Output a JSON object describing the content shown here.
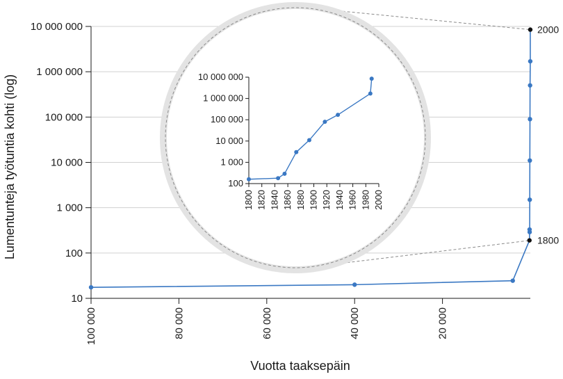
{
  "chart_data": [
    {
      "type": "line",
      "xlabel": "Vuotta taaksepäin",
      "ylabel": "Lumentunteja työtuntia kohti (log)",
      "yscale": "log",
      "ylim": [
        10,
        10000000
      ],
      "xlim": [
        100000,
        0
      ],
      "x_inverted": true,
      "y_ticks": [
        "10",
        "100",
        "1 000",
        "10 000",
        "100 000",
        "1 000 000",
        "10 000 000"
      ],
      "x_ticks": [
        "100 000",
        "80 000",
        "60 000",
        "40 000",
        "20 000"
      ],
      "grid": "horizontal",
      "series": [
        {
          "color": "#3a78c3",
          "points": [
            {
              "x": 100000,
              "y": 17.5
            },
            {
              "x": 40000,
              "y": 20
            },
            {
              "x": 4000,
              "y": 24.5
            },
            {
              "x": 200,
              "y": 190
            },
            {
              "x": 170,
              "y": 330
            },
            {
              "x": 150,
              "y": 290
            },
            {
              "x": 130,
              "y": 1500
            },
            {
              "x": 110,
              "y": 11000
            },
            {
              "x": 80,
              "y": 90000
            },
            {
              "x": 60,
              "y": 500000
            },
            {
              "x": 13,
              "y": 1700000
            },
            {
              "x": 11,
              "y": 8500000
            }
          ]
        }
      ],
      "annotations": [
        {
          "label": "2000",
          "y": 8500000
        },
        {
          "label": "1800",
          "y": 190
        }
      ]
    },
    {
      "type": "line",
      "role": "inset",
      "yscale": "log",
      "ylim": [
        100,
        10000000
      ],
      "xlim": [
        1800,
        2000
      ],
      "y_ticks": [
        "100",
        "1 000",
        "10 000",
        "100 000",
        "1 000 000",
        "10 000 000"
      ],
      "x_ticks": [
        "1800",
        "1820",
        "1840",
        "1860",
        "1880",
        "1900",
        "1920",
        "1940",
        "1960",
        "1980",
        "2000"
      ],
      "series": [
        {
          "color": "#3a78c3",
          "points": [
            {
              "x": 1800,
              "y": 160
            },
            {
              "x": 1845,
              "y": 180
            },
            {
              "x": 1855,
              "y": 290
            },
            {
              "x": 1873,
              "y": 3000
            },
            {
              "x": 1893,
              "y": 11000
            },
            {
              "x": 1917,
              "y": 80000
            },
            {
              "x": 1937,
              "y": 170000
            },
            {
              "x": 1987,
              "y": 1700000
            },
            {
              "x": 1989,
              "y": 8500000
            }
          ]
        }
      ]
    }
  ]
}
